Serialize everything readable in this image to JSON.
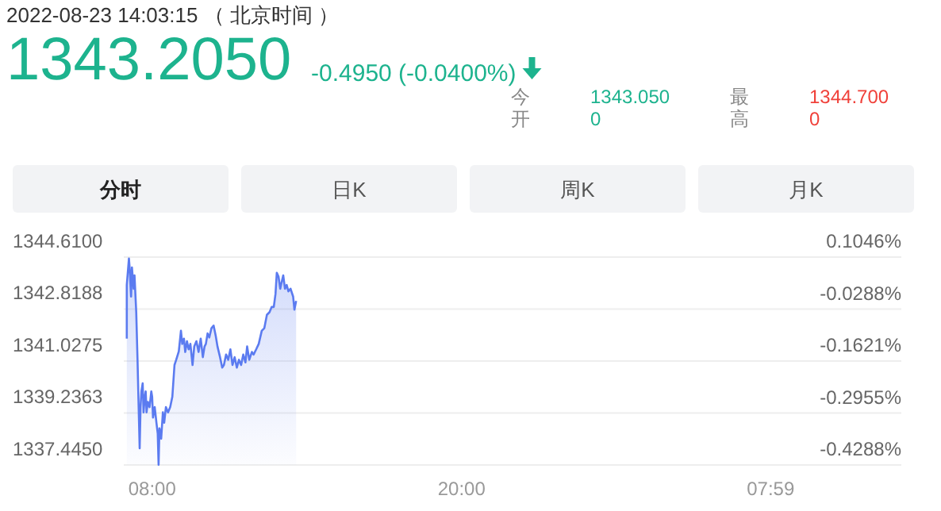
{
  "chart_data": {
    "type": "area",
    "title": "2022-08-23 14:03:15 （ 北京时间 ）",
    "annotations": [
      "1343.2050",
      "-0.4950 (-0.0400%)",
      "今开",
      "1343.0500",
      "最高",
      "1344.7000",
      "分时",
      "日K",
      "周K",
      "月K"
    ],
    "x": [
      "2022-08-23T07:01",
      "2022-08-23T07:01",
      "2022-08-23T07:06",
      "2022-08-23T07:08",
      "2022-08-23T07:11",
      "2022-08-23T07:13",
      "2022-08-23T07:17",
      "2022-08-23T07:19",
      "2022-08-23T07:23",
      "2022-08-23T07:26",
      "2022-08-23T07:28",
      "2022-08-23T07:31",
      "2022-08-23T07:33",
      "2022-08-23T07:35",
      "2022-08-23T07:38",
      "2022-08-23T07:40",
      "2022-08-23T07:43",
      "2022-08-23T07:45",
      "2022-08-23T07:47",
      "2022-08-23T07:50",
      "2022-08-23T07:54",
      "2022-08-23T07:58",
      "2022-08-23T08:00",
      "2022-08-23T08:02",
      "2022-08-23T08:06",
      "2022-08-23T08:10",
      "2022-08-23T08:13",
      "2022-08-23T08:15",
      "2022-08-23T08:17",
      "2022-08-23T08:21",
      "2022-08-23T08:25",
      "2022-08-23T08:28",
      "2022-08-23T08:32",
      "2022-08-23T08:37",
      "2022-08-23T08:42",
      "2022-08-23T08:47",
      "2022-08-23T08:52",
      "2022-08-23T08:56",
      "2022-08-23T09:02",
      "2022-08-23T09:07",
      "2022-08-23T09:10",
      "2022-08-23T09:14",
      "2022-08-23T09:17",
      "2022-08-23T09:21",
      "2022-08-23T09:25",
      "2022-08-23T09:29",
      "2022-08-23T09:34",
      "2022-08-23T09:38",
      "2022-08-23T09:43",
      "2022-08-23T09:48",
      "2022-08-23T09:53",
      "2022-08-23T09:58",
      "2022-08-23T10:02",
      "2022-08-23T10:05",
      "2022-08-23T10:09",
      "2022-08-23T10:13",
      "2022-08-23T10:18",
      "2022-08-23T10:23",
      "2022-08-23T10:28",
      "2022-08-23T10:32",
      "2022-08-23T10:38",
      "2022-08-23T10:43",
      "2022-08-23T10:47",
      "2022-08-23T10:52",
      "2022-08-23T10:57",
      "2022-08-23T11:02",
      "2022-08-23T11:07",
      "2022-08-23T11:12",
      "2022-08-23T11:17",
      "2022-08-23T11:22",
      "2022-08-23T11:27",
      "2022-08-23T11:32",
      "2022-08-23T11:37",
      "2022-08-23T11:41",
      "2022-08-23T11:46",
      "2022-08-23T11:52",
      "2022-08-23T11:56",
      "2022-08-23T12:02",
      "2022-08-23T12:08",
      "2022-08-23T12:15",
      "2022-08-23T12:21",
      "2022-08-23T12:27",
      "2022-08-23T12:33",
      "2022-08-23T12:38",
      "2022-08-23T12:43",
      "2022-08-23T12:47",
      "2022-08-23T12:50",
      "2022-08-23T12:54",
      "2022-08-23T12:58",
      "2022-08-23T13:02",
      "2022-08-23T13:05",
      "2022-08-23T13:09",
      "2022-08-23T13:13",
      "2022-08-23T13:17",
      "2022-08-23T13:22",
      "2022-08-23T13:28",
      "2022-08-23T13:31",
      "2022-08-23T13:35"
    ],
    "series": [
      {
        "color": "#5b7bf0",
        "values": [
          1341.8,
          1343.65,
          1344.56,
          1344.16,
          1343.25,
          1344.25,
          1343.52,
          1343.98,
          1342.71,
          1341.07,
          1339.8,
          1338.02,
          1339.44,
          1339.98,
          1340.26,
          1339.26,
          1339.8,
          1339.98,
          1339.26,
          1339.62,
          1339.44,
          1339.98,
          1339.8,
          1339.08,
          1339.44,
          1338.9,
          1338.53,
          1337.45,
          1338.71,
          1338.35,
          1339.26,
          1338.9,
          1339.44,
          1339.26,
          1339.44,
          1339.8,
          1340.89,
          1341.07,
          1341.36,
          1342.07,
          1341.62,
          1341.8,
          1341.34,
          1341.71,
          1341.43,
          1341.62,
          1340.89,
          1341.53,
          1341.71,
          1341.34,
          1341.8,
          1341.16,
          1341.53,
          1341.62,
          1341.98,
          1341.84,
          1342.16,
          1342.25,
          1341.89,
          1341.53,
          1341.16,
          1340.8,
          1340.89,
          1341.25,
          1341.07,
          1341.43,
          1340.89,
          1341.16,
          1340.8,
          1341.07,
          1340.89,
          1341.25,
          1340.98,
          1341.53,
          1341.07,
          1341.34,
          1341.25,
          1341.43,
          1341.62,
          1342.07,
          1342.16,
          1342.62,
          1342.71,
          1342.89,
          1342.89,
          1343.34,
          1344.07,
          1343.94,
          1343.52,
          1343.79,
          1343.98,
          1343.52,
          1343.65,
          1343.43,
          1343.52,
          1343.25,
          1342.8,
          1343.1
        ]
      }
    ],
    "xlim": [
      "2022-08-23T06:54",
      "2022-08-24T13:03"
    ],
    "xticks": [
      {
        "value": "2022-08-23T08:00",
        "label": "08:00"
      },
      {
        "value": "2022-08-23T20:00",
        "label": "20:00"
      },
      {
        "value": "2022-08-24T07:59",
        "label": "07:59"
      }
    ],
    "ylim": [
      1337.445,
      1344.61
    ],
    "yticks": [
      {
        "value": 1344.61,
        "label": "1344.6100"
      },
      {
        "value": 1342.8188,
        "label": "1342.8188"
      },
      {
        "value": 1341.0275,
        "label": "1341.0275"
      },
      {
        "value": 1339.2363,
        "label": "1339.2363"
      },
      {
        "value": 1337.445,
        "label": "1337.4450"
      }
    ],
    "y2lim": [
      -0.4288,
      0.1046
    ],
    "y2ticks": [
      {
        "value": 0.1046,
        "label": "0.1046%"
      },
      {
        "value": -0.0288,
        "label": "-0.0288%"
      },
      {
        "value": -0.1621,
        "label": "-0.1621%"
      },
      {
        "value": -0.2955,
        "label": "-0.2955%"
      },
      {
        "value": -0.4288,
        "label": "-0.4288%"
      }
    ],
    "grid": "y"
  }
}
